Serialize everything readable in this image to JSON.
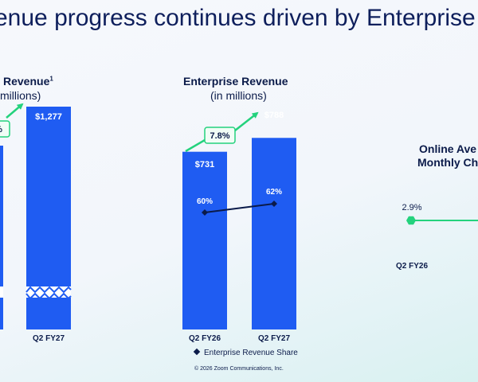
{
  "heading": "venue progress continues driven by Enterprise",
  "colors": {
    "bar": "#1f5cf2",
    "growth": "#24d27d",
    "share_line": "#0b1b4a",
    "text": "#0b1b4a"
  },
  "chart_data": [
    {
      "type": "bar",
      "title": "Revenue",
      "title_superscript": "1",
      "subtitle": "millions)",
      "categories": [
        "Q2 FY27"
      ],
      "values": [
        1277
      ],
      "value_labels": [
        "$1,277"
      ],
      "growth_label": "%",
      "axis_break": true
    },
    {
      "type": "bar",
      "title": "Enterprise Revenue",
      "subtitle": "(in millions)",
      "categories": [
        "Q2 FY26",
        "Q2 FY27"
      ],
      "values": [
        731,
        788
      ],
      "value_labels": [
        "$731",
        "$788"
      ],
      "growth_label": "7.8%",
      "series": [
        {
          "name": "Enterprise Revenue Share",
          "type": "line",
          "values": [
            60,
            62
          ],
          "value_labels": [
            "60%",
            "62%"
          ]
        }
      ],
      "legend": {
        "position": "bottom",
        "items": [
          "Enterprise Revenue Share"
        ]
      }
    },
    {
      "type": "line",
      "title": "Online Ave",
      "subtitle": "Monthly Ch",
      "categories": [
        "Q2 FY26"
      ],
      "values": [
        2.9
      ],
      "value_labels": [
        "2.9%"
      ]
    }
  ],
  "footer": "© 2026 Zoom Communications, Inc."
}
